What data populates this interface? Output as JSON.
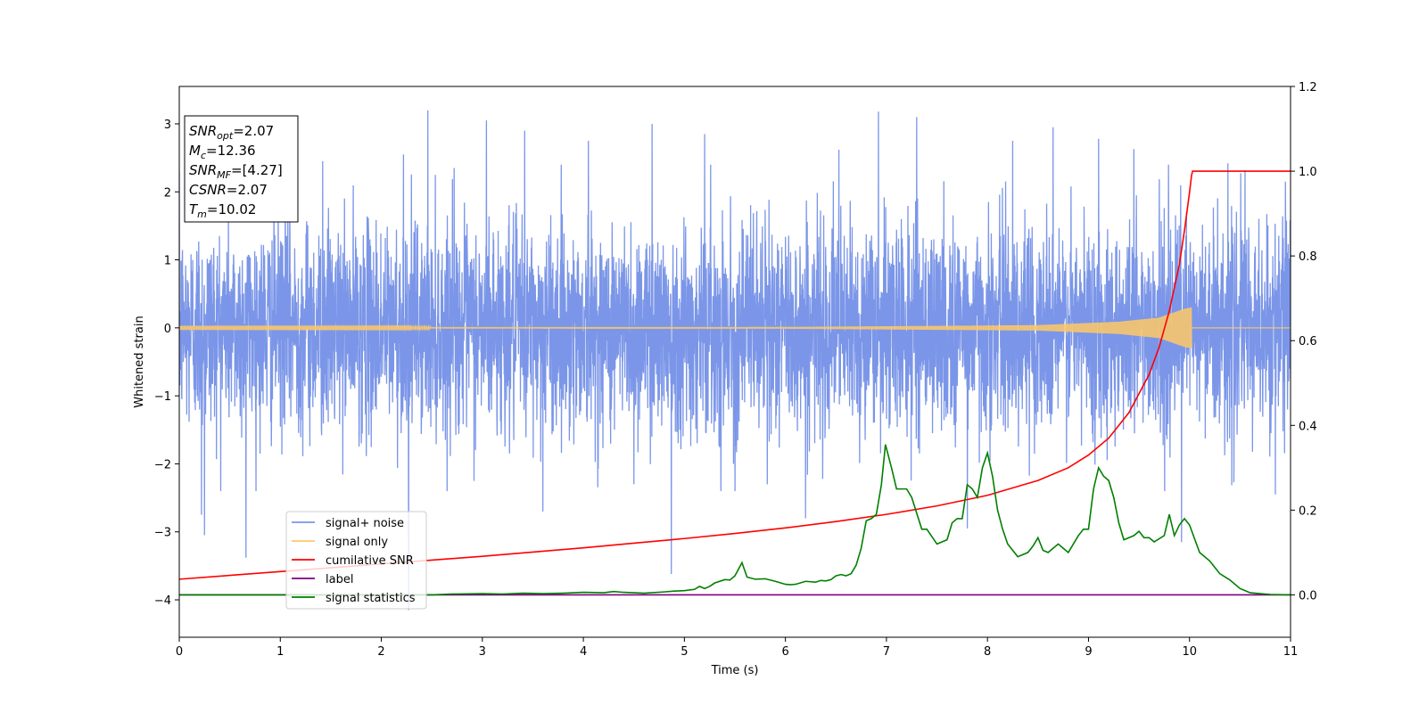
{
  "chart_data": {
    "type": "line",
    "title": "",
    "xlabel": "Time (s)",
    "ylabel": "Whitened strain",
    "xlim": [
      0,
      11
    ],
    "ylim_left": [
      -4.55,
      3.55
    ],
    "ylim_right": [
      -0.1,
      1.2
    ],
    "x_ticks": [
      0,
      1,
      2,
      3,
      4,
      5,
      6,
      7,
      8,
      9,
      10,
      11
    ],
    "y_ticks_left": [
      -4,
      -3,
      -2,
      -1,
      0,
      1,
      2,
      3
    ],
    "y_ticks_right": [
      "0.0",
      "0.2",
      "0.4",
      "0.6",
      "0.8",
      "1.0",
      "1.2"
    ],
    "grid": false,
    "legend_position": "lower-left",
    "annotation": {
      "lines": [
        {
          "base": "SNR",
          "sub": "opt",
          "rest": "=2.07"
        },
        {
          "base": "M",
          "sub": "c",
          "rest": "=12.36"
        },
        {
          "base": "SNR",
          "sub": "MF",
          "rest": "=[4.27]"
        },
        {
          "base": "CSNR",
          "sub": "",
          "rest": "=2.07"
        },
        {
          "base": "T",
          "sub": "m",
          "rest": "=10.02"
        }
      ]
    },
    "series": [
      {
        "name": "signal+ noise",
        "color": "#7b96e8",
        "axis": "left",
        "kind": "noise",
        "sigma": 0.75,
        "x_range": [
          0,
          11
        ],
        "spikes": [
          [
            0.0,
            2.3
          ],
          [
            0.22,
            -2.75
          ],
          [
            0.25,
            -3.05
          ],
          [
            0.66,
            -3.38
          ],
          [
            1.05,
            2.32
          ],
          [
            1.42,
            2.45
          ],
          [
            2.22,
            2.55
          ],
          [
            2.27,
            -4.15
          ],
          [
            2.46,
            3.2
          ],
          [
            2.72,
            2.35
          ],
          [
            3.04,
            3.05
          ],
          [
            3.42,
            2.9
          ],
          [
            3.6,
            -2.7
          ],
          [
            4.05,
            2.75
          ],
          [
            4.5,
            -2.3
          ],
          [
            4.68,
            3.0
          ],
          [
            4.87,
            -3.62
          ],
          [
            5.2,
            2.85
          ],
          [
            5.5,
            -2.4
          ],
          [
            5.82,
            -2.3
          ],
          [
            6.2,
            -2.8
          ],
          [
            6.53,
            2.62
          ],
          [
            6.92,
            3.18
          ],
          [
            7.3,
            3.1
          ],
          [
            7.8,
            -2.95
          ],
          [
            8.25,
            2.75
          ],
          [
            8.65,
            2.95
          ],
          [
            9.1,
            2.78
          ],
          [
            9.45,
            2.63
          ],
          [
            9.92,
            -3.15
          ],
          [
            10.38,
            2.42
          ],
          [
            10.55,
            2.32
          ],
          [
            10.85,
            -2.45
          ],
          [
            10.95,
            2.15
          ]
        ]
      },
      {
        "name": "signal only",
        "color": "#ffc966",
        "axis": "left",
        "kind": "chirp",
        "x_range": [
          0,
          10.02
        ],
        "envelope": [
          [
            0,
            0.008
          ],
          [
            6.0,
            0.012
          ],
          [
            8.5,
            0.04
          ],
          [
            9.3,
            0.09
          ],
          [
            9.7,
            0.15
          ],
          [
            9.95,
            0.28
          ],
          [
            10.02,
            0.3
          ]
        ]
      },
      {
        "name": "cumilative SNR",
        "color": "#ff0000",
        "axis": "right",
        "x": [
          0,
          0.5,
          1,
          1.5,
          2,
          2.5,
          3,
          3.5,
          4,
          4.5,
          5,
          5.5,
          6,
          6.5,
          7,
          7.5,
          8,
          8.5,
          8.8,
          9.0,
          9.2,
          9.4,
          9.6,
          9.7,
          9.8,
          9.9,
          9.95,
          10.0,
          10.02,
          10.03,
          11
        ],
        "values": [
          0.037,
          0.046,
          0.055,
          0.064,
          0.073,
          0.082,
          0.091,
          0.101,
          0.111,
          0.122,
          0.133,
          0.145,
          0.158,
          0.173,
          0.19,
          0.21,
          0.235,
          0.27,
          0.3,
          0.33,
          0.37,
          0.43,
          0.52,
          0.585,
          0.67,
          0.78,
          0.86,
          0.95,
          0.99,
          1.0,
          1.0
        ]
      },
      {
        "name": "label",
        "color": "#800080",
        "axis": "right",
        "x": [
          0,
          11
        ],
        "values": [
          0.0,
          0.0
        ]
      },
      {
        "name": "signal statistics",
        "color": "#008000",
        "axis": "right",
        "x": [
          0,
          0.5,
          1,
          1.5,
          2,
          2.5,
          2.7,
          3,
          3.2,
          3.4,
          3.6,
          3.8,
          4.0,
          4.2,
          4.3,
          4.4,
          4.6,
          4.8,
          4.9,
          5.0,
          5.1,
          5.15,
          5.2,
          5.25,
          5.3,
          5.4,
          5.45,
          5.5,
          5.57,
          5.62,
          5.7,
          5.8,
          5.9,
          6.0,
          6.05,
          6.1,
          6.2,
          6.3,
          6.35,
          6.4,
          6.45,
          6.5,
          6.55,
          6.6,
          6.65,
          6.7,
          6.75,
          6.8,
          6.85,
          6.9,
          6.95,
          6.99,
          7.05,
          7.1,
          7.2,
          7.25,
          7.35,
          7.4,
          7.5,
          7.6,
          7.65,
          7.7,
          7.75,
          7.8,
          7.85,
          7.9,
          7.95,
          8.0,
          8.05,
          8.1,
          8.15,
          8.2,
          8.3,
          8.4,
          8.45,
          8.5,
          8.55,
          8.6,
          8.7,
          8.8,
          8.85,
          8.9,
          8.95,
          9.0,
          9.05,
          9.1,
          9.15,
          9.2,
          9.25,
          9.3,
          9.35,
          9.45,
          9.5,
          9.55,
          9.6,
          9.65,
          9.75,
          9.8,
          9.85,
          9.9,
          9.95,
          10.0,
          10.1,
          10.2,
          10.3,
          10.4,
          10.5,
          10.6,
          10.8,
          11
        ],
        "values": [
          0.0,
          0.0,
          0.0,
          0.0,
          0.0,
          0.0,
          0.002,
          0.003,
          0.002,
          0.004,
          0.003,
          0.004,
          0.006,
          0.005,
          0.008,
          0.006,
          0.004,
          0.007,
          0.009,
          0.01,
          0.013,
          0.02,
          0.015,
          0.02,
          0.028,
          0.036,
          0.035,
          0.045,
          0.076,
          0.042,
          0.037,
          0.038,
          0.032,
          0.025,
          0.024,
          0.025,
          0.032,
          0.03,
          0.034,
          0.033,
          0.036,
          0.045,
          0.048,
          0.045,
          0.05,
          0.07,
          0.11,
          0.175,
          0.18,
          0.19,
          0.26,
          0.355,
          0.3,
          0.25,
          0.25,
          0.23,
          0.155,
          0.155,
          0.12,
          0.13,
          0.17,
          0.18,
          0.18,
          0.26,
          0.25,
          0.23,
          0.3,
          0.335,
          0.28,
          0.2,
          0.155,
          0.12,
          0.09,
          0.1,
          0.115,
          0.135,
          0.105,
          0.1,
          0.12,
          0.1,
          0.12,
          0.14,
          0.155,
          0.155,
          0.25,
          0.3,
          0.28,
          0.27,
          0.23,
          0.17,
          0.13,
          0.14,
          0.15,
          0.135,
          0.135,
          0.125,
          0.14,
          0.19,
          0.14,
          0.165,
          0.18,
          0.165,
          0.1,
          0.08,
          0.05,
          0.035,
          0.015,
          0.005,
          0.001,
          0.0
        ]
      }
    ]
  }
}
